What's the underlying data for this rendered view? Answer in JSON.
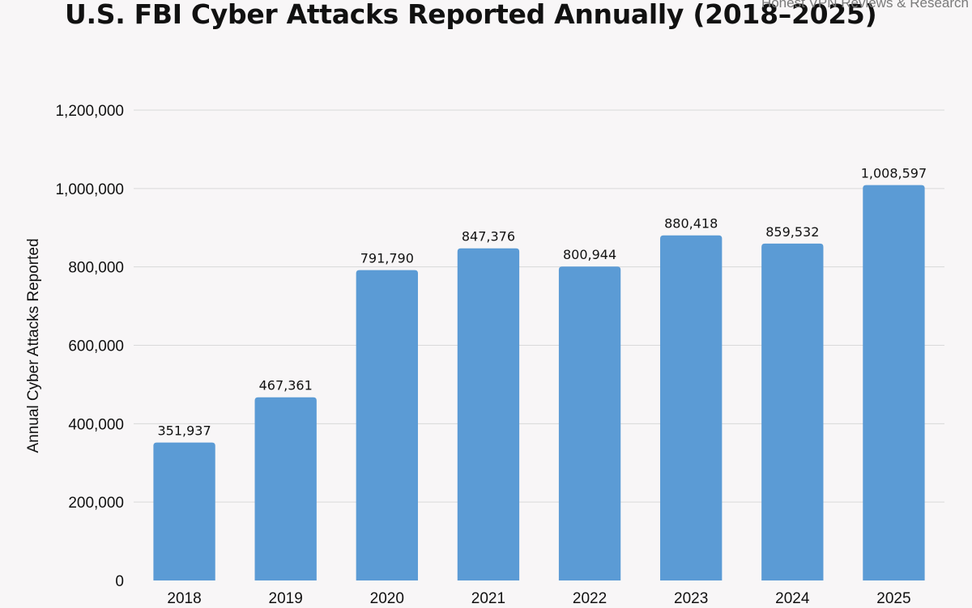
{
  "watermark": "Honest VPN Reviews & Research",
  "colors": {
    "bar": "#5b9bd5",
    "background": "#f8f6f7",
    "grid": "#d9d9d9"
  },
  "chart_data": {
    "type": "bar",
    "title": "U.S. FBI Cyber Attacks Reported Annually (2018–2025)",
    "xlabel": "",
    "ylabel": "Annual Cyber Attacks Reported",
    "categories": [
      "2018",
      "2019",
      "2020",
      "2021",
      "2022",
      "2023",
      "2024",
      "2025"
    ],
    "values": [
      351937,
      467361,
      791790,
      847376,
      800944,
      880418,
      859532,
      1008597
    ],
    "data_labels": [
      "351,937",
      "467,361",
      "791,790",
      "847,376",
      "800,944",
      "880,418",
      "859,532",
      "1,008,597"
    ],
    "ylim": [
      0,
      1200000
    ],
    "yticks": [
      0,
      200000,
      400000,
      600000,
      800000,
      1000000,
      1200000
    ],
    "ytick_labels": [
      "0",
      "200,000",
      "400,000",
      "600,000",
      "800,000",
      "1,000,000",
      "1,200,000"
    ],
    "grid": true,
    "legend": "none"
  }
}
